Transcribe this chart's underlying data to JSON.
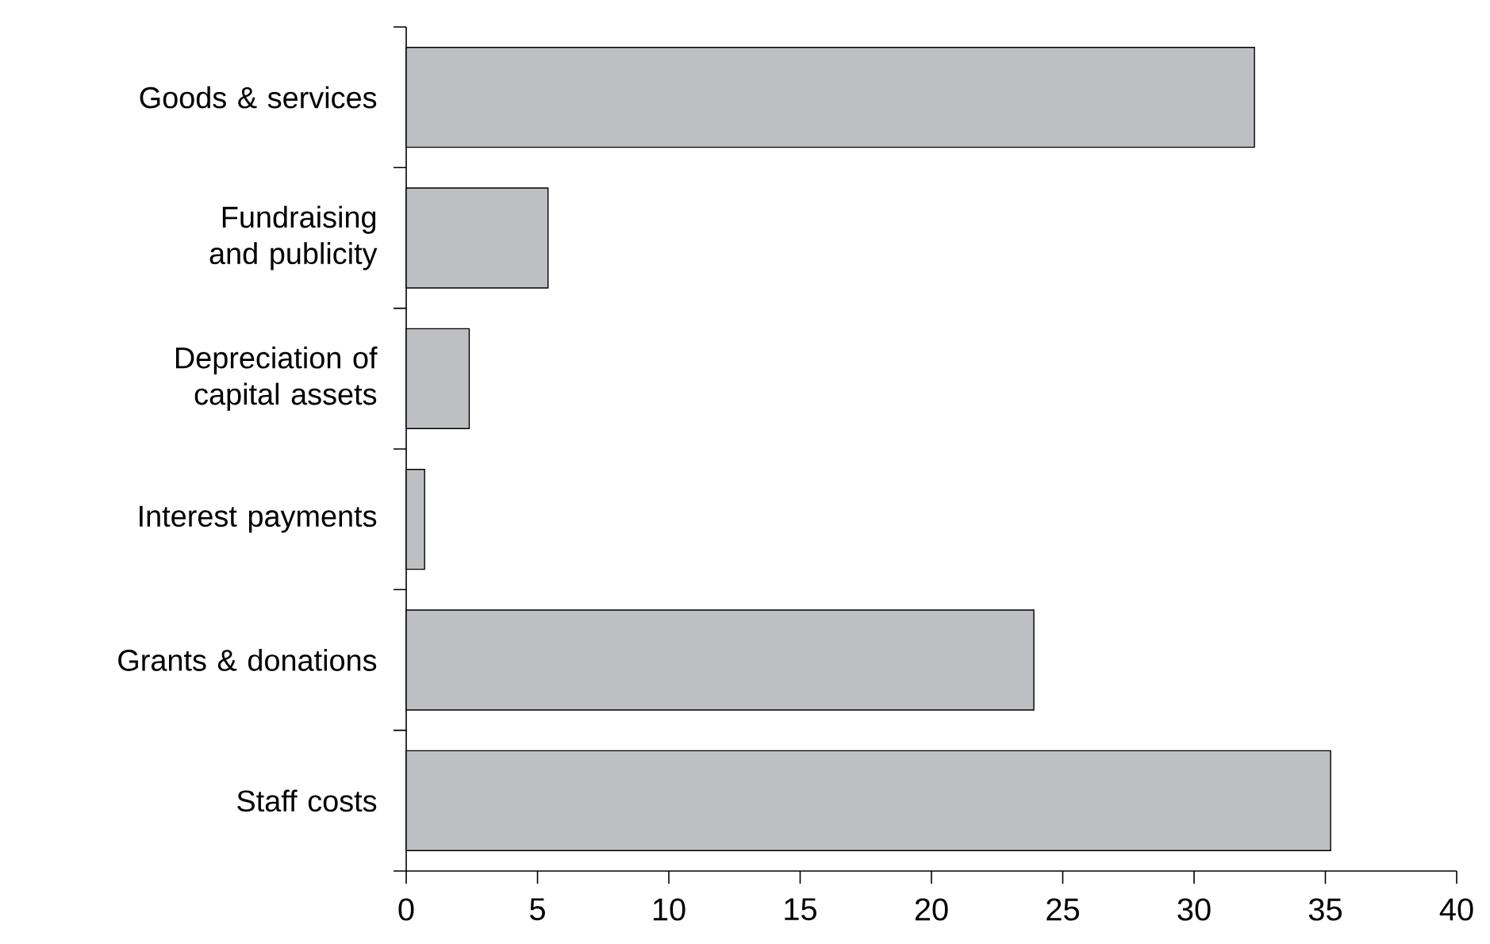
{
  "chart_data": {
    "type": "bar",
    "orientation": "horizontal",
    "categories": [
      "Goods & services",
      "Fundraising and publicity",
      "Depreciation of capital assets",
      "Interest payments",
      "Grants & donations",
      "Staff costs"
    ],
    "values": [
      32.3,
      5.4,
      2.4,
      0.7,
      23.9,
      35.2
    ],
    "color": "#bebfc3",
    "xlim": [
      0,
      40
    ],
    "xticks": [
      0,
      5,
      10,
      15,
      20,
      25,
      30,
      35,
      40
    ],
    "grid": false
  }
}
